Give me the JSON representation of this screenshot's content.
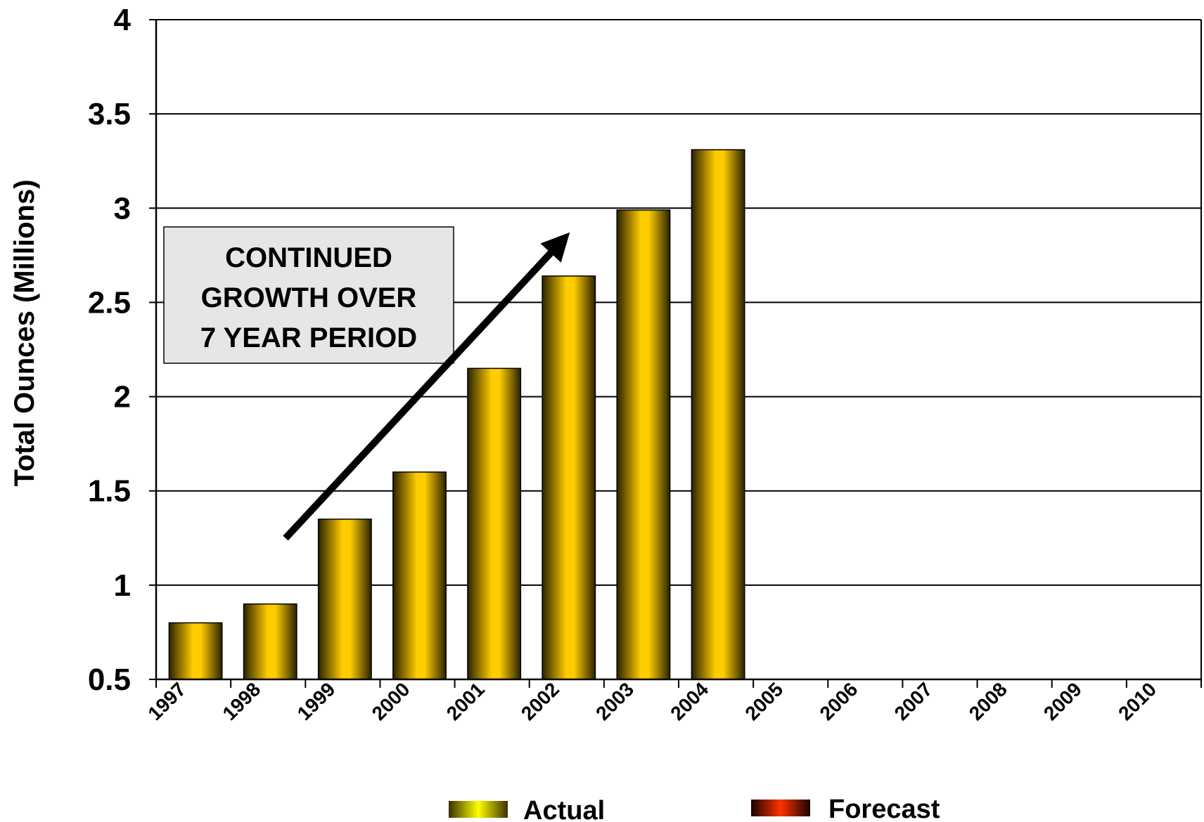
{
  "chart_data": {
    "type": "bar",
    "categories": [
      "1997",
      "1998",
      "1999",
      "2000",
      "2001",
      "2002",
      "2003",
      "2004",
      "2005",
      "2006",
      "2007",
      "2008",
      "2009",
      "2010"
    ],
    "series": [
      {
        "name": "Actual",
        "values": [
          0.8,
          0.9,
          1.35,
          1.6,
          2.15,
          2.64,
          2.99,
          3.31,
          null,
          null,
          null,
          null,
          null,
          null
        ]
      },
      {
        "name": "Forecast",
        "values": [
          null,
          null,
          null,
          null,
          null,
          null,
          null,
          null,
          null,
          null,
          null,
          null,
          null,
          null
        ]
      }
    ],
    "title": "",
    "xlabel": "",
    "ylabel": "Total Ounces (Millions)",
    "ylim": [
      0.5,
      4
    ],
    "yticks": [
      "0.5",
      "1",
      "1.5",
      "2",
      "2.5",
      "3",
      "3.5",
      "4"
    ],
    "grid": "horizontal",
    "legend_position": "bottom",
    "annotation": {
      "lines": [
        "CONTINUED",
        "GROWTH OVER",
        "7 YEAR PERIOD"
      ]
    },
    "colors": {
      "actual_dark": "#2b2200",
      "actual_light": "#ffcc00",
      "actual_legend_light": "#ffff00",
      "forecast_dark": "#1a0000",
      "forecast_light": "#ff3300",
      "annotation_fill": "#e6e6e6",
      "arrow": "#000000"
    }
  }
}
